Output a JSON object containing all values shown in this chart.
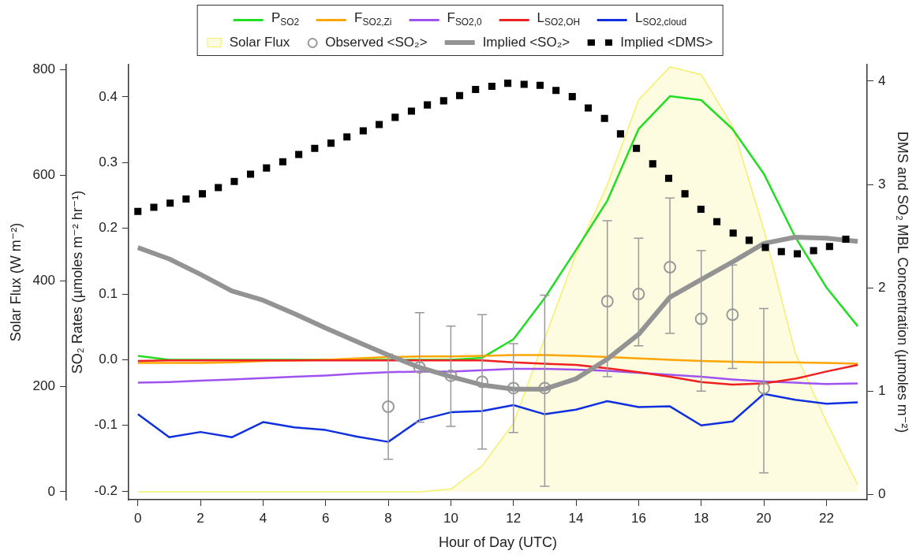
{
  "chart_data": {
    "type": "line",
    "xlabel": "Hour of Day (UTC)",
    "ylabel": "SO₂ Rates (µmoles m⁻² hr⁻¹)",
    "y2label": "DMS and SO₂ MBL Concentration (µmoles m⁻²)",
    "y3label": "Solar Flux (W m⁻²)",
    "x": [
      0,
      1,
      2,
      3,
      4,
      5,
      6,
      7,
      8,
      9,
      10,
      11,
      12,
      13,
      14,
      15,
      16,
      17,
      18,
      19,
      20,
      21,
      22,
      23
    ],
    "xlim": [
      -0.3,
      23.3
    ],
    "xticks": [
      0,
      2,
      4,
      6,
      8,
      10,
      12,
      14,
      16,
      18,
      20,
      22
    ],
    "ylim": [
      -0.213,
      0.449
    ],
    "yticks": [
      {
        "value": -0.2,
        "label": "-0.2"
      },
      {
        "value": -0.1,
        "label": "-0.1"
      },
      {
        "value": 0,
        "label": "0.0"
      },
      0.1,
      0.2,
      0.3,
      0.4
    ],
    "y2lim": [
      -0.05,
      4.16
    ],
    "y2ticks": [
      0,
      1,
      2,
      3,
      4
    ],
    "y3lim": [
      -15,
      810
    ],
    "y3ticks": [
      0,
      200,
      400,
      600,
      800
    ],
    "grid": false,
    "legend": "top",
    "marker": "none",
    "series": [
      {
        "name": "P$_{SO2}$",
        "color": "#22dd22",
        "values": [
          0.006,
          0,
          0,
          0,
          0,
          0,
          0,
          0,
          0,
          0,
          0,
          0.003,
          0.031,
          0.094,
          0.167,
          0.242,
          0.351,
          0.401,
          0.395,
          0.351,
          0.283,
          0.187,
          0.11,
          0.051
        ]
      },
      {
        "name": "F$_{SO2,Zi}$",
        "color": "#ffa500",
        "values": [
          -0.005,
          -0.005,
          -0.005,
          -0.004,
          -0.002,
          -0.001,
          0,
          0.002,
          0.004,
          0.005,
          0.005,
          0.006,
          0.007,
          0.007,
          0.006,
          0.004,
          0.002,
          0,
          -0.002,
          -0.003,
          -0.004,
          -0.004,
          -0.005,
          -0.006
        ]
      },
      {
        "name": "F$_{SO2,0}$",
        "color": "#a052f0",
        "values": [
          -0.035,
          -0.034,
          -0.032,
          -0.03,
          -0.028,
          -0.026,
          -0.024,
          -0.021,
          -0.019,
          -0.018,
          -0.018,
          -0.016,
          -0.014,
          -0.014,
          -0.015,
          -0.017,
          -0.02,
          -0.023,
          -0.026,
          -0.03,
          -0.033,
          -0.035,
          -0.037,
          -0.036
        ]
      },
      {
        "name": "L$_{SO2,OH}$",
        "color": "#ee2020",
        "values": [
          -0.002,
          -0.001,
          -0.001,
          -0.001,
          -0.001,
          -0.001,
          -0.001,
          -0.001,
          -0.001,
          -0.001,
          -0.001,
          -0.001,
          -0.004,
          -0.006,
          -0.008,
          -0.013,
          -0.019,
          -0.026,
          -0.034,
          -0.038,
          -0.036,
          -0.029,
          -0.018,
          -0.008
        ]
      },
      {
        "name": "L$_{SO2,cloud}$",
        "color": "#1030e0",
        "values": [
          -0.083,
          -0.118,
          -0.11,
          -0.118,
          -0.095,
          -0.103,
          -0.107,
          -0.117,
          -0.125,
          -0.092,
          -0.08,
          -0.078,
          -0.069,
          -0.083,
          -0.076,
          -0.063,
          -0.072,
          -0.071,
          -0.1,
          -0.094,
          -0.052,
          -0.061,
          -0.067,
          -0.065
        ]
      },
      {
        "name": "Solar Flux",
        "type": "area",
        "axis": "y3",
        "color": "#f5ef6a",
        "values": [
          0,
          0,
          0,
          0,
          0,
          0,
          0,
          0,
          0,
          0,
          5,
          49,
          130,
          291,
          451,
          582,
          743,
          806,
          791,
          693,
          497,
          264,
          133,
          13
        ]
      },
      {
        "name": "Observed <SO₂>",
        "type": "scatter",
        "axis": "y2",
        "marker": "circle",
        "color": "#999999",
        "x": [
          8,
          9,
          10,
          11,
          12,
          13,
          15,
          16,
          17,
          18,
          19,
          20
        ],
        "values": [
          0.85,
          1.23,
          1.15,
          1.09,
          1.03,
          1.03,
          1.87,
          1.94,
          2.2,
          1.7,
          1.74,
          1.03
        ],
        "errors": [
          [
            0.34,
            1.36
          ],
          [
            0.7,
            1.76
          ],
          [
            0.66,
            1.63
          ],
          [
            0.44,
            1.74
          ],
          [
            0.6,
            1.46
          ],
          [
            0.08,
            1.93
          ],
          [
            1.14,
            2.65
          ],
          [
            1.44,
            2.48
          ],
          [
            1.56,
            2.87
          ],
          [
            1.0,
            2.36
          ],
          [
            1.22,
            2.22
          ],
          [
            0.21,
            1.8
          ]
        ]
      },
      {
        "name": "Implied <SO₂>",
        "axis": "y2",
        "color": "#939393",
        "values": [
          2.39,
          2.28,
          2.13,
          1.97,
          1.88,
          1.75,
          1.61,
          1.48,
          1.35,
          1.23,
          1.14,
          1.06,
          1.02,
          1.02,
          1.12,
          1.31,
          1.55,
          1.91,
          2.08,
          2.25,
          2.43,
          2.49,
          2.48,
          2.45
        ]
      },
      {
        "name": "Implied <DMS>",
        "type": "scatter",
        "axis": "y2",
        "marker": "square",
        "color": "#000000",
        "x": [
          0,
          0.51,
          1.03,
          1.54,
          2.06,
          2.57,
          3.08,
          3.6,
          4.11,
          4.63,
          5.14,
          5.65,
          6.17,
          6.68,
          7.2,
          7.71,
          8.22,
          8.74,
          9.25,
          9.77,
          10.28,
          10.79,
          11.31,
          11.82,
          12.34,
          12.85,
          13.36,
          13.88,
          14.39,
          14.91,
          15.42,
          15.93,
          16.45,
          16.96,
          17.48,
          17.99,
          18.5,
          19.02,
          19.53,
          20.05,
          20.56,
          21.07,
          21.59,
          22.1,
          22.62
        ],
        "values": [
          2.74,
          2.78,
          2.82,
          2.86,
          2.91,
          2.97,
          3.03,
          3.1,
          3.16,
          3.22,
          3.29,
          3.35,
          3.4,
          3.46,
          3.52,
          3.58,
          3.65,
          3.71,
          3.77,
          3.81,
          3.86,
          3.92,
          3.95,
          3.98,
          3.97,
          3.96,
          3.91,
          3.85,
          3.74,
          3.64,
          3.49,
          3.35,
          3.2,
          3.06,
          2.91,
          2.76,
          2.64,
          2.53,
          2.46,
          2.39,
          2.35,
          2.33,
          2.36,
          2.4,
          2.47
        ]
      }
    ]
  }
}
